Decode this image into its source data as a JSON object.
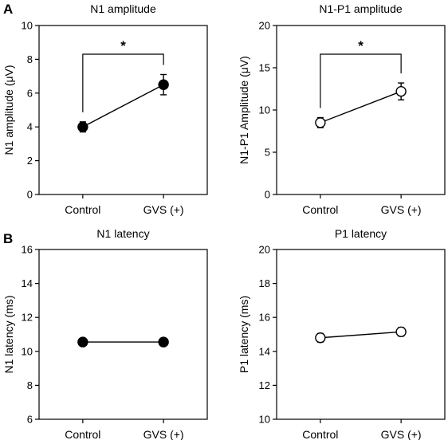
{
  "panel_labels": [
    "A",
    "B"
  ],
  "chart_data": [
    {
      "type": "line",
      "title": "N1 amplitude",
      "ylabel": "N1 amplitude (μV)",
      "categories": [
        "Control",
        "GVS (+)"
      ],
      "ylim": [
        0,
        10
      ],
      "yticks": [
        "0",
        "2",
        "4",
        "6",
        "8",
        "10"
      ],
      "marker": "filled-circle",
      "series": [
        {
          "values": [
            4.0,
            6.5
          ],
          "error": [
            0.3,
            0.6
          ]
        }
      ],
      "significance": {
        "label": "*",
        "from": "Control",
        "to": "GVS (+)"
      }
    },
    {
      "type": "line",
      "title": "N1-P1 amplitude",
      "ylabel": "N1-P1 Amplitude (μV)",
      "categories": [
        "Control",
        "GVS (+)"
      ],
      "ylim": [
        0,
        20
      ],
      "yticks": [
        "0",
        "5",
        "10",
        "15",
        "20"
      ],
      "marker": "open-circle",
      "series": [
        {
          "values": [
            8.5,
            12.2
          ],
          "error": [
            0.6,
            1.0
          ]
        }
      ],
      "significance": {
        "label": "*",
        "from": "Control",
        "to": "GVS (+)"
      }
    },
    {
      "type": "line",
      "title": "N1 latency",
      "ylabel": "N1 latency (ms)",
      "categories": [
        "Control",
        "GVS (+)"
      ],
      "ylim": [
        6,
        16
      ],
      "yticks": [
        "6",
        "8",
        "10",
        "12",
        "14",
        "16"
      ],
      "marker": "filled-circle",
      "series": [
        {
          "values": [
            10.55,
            10.55
          ],
          "error": [
            0.1,
            0.1
          ]
        }
      ]
    },
    {
      "type": "line",
      "title": "P1 latency",
      "ylabel": "P1 latency (ms)",
      "categories": [
        "Control",
        "GVS (+)"
      ],
      "ylim": [
        10,
        20
      ],
      "yticks": [
        "10",
        "12",
        "14",
        "16",
        "18",
        "20"
      ],
      "marker": "open-circle",
      "series": [
        {
          "values": [
            14.8,
            15.15
          ],
          "error": [
            0.25,
            0.25
          ]
        }
      ]
    }
  ],
  "colors": {
    "marker_fill": "#000000",
    "open_fill": "#ffffff",
    "line": "#000000"
  }
}
